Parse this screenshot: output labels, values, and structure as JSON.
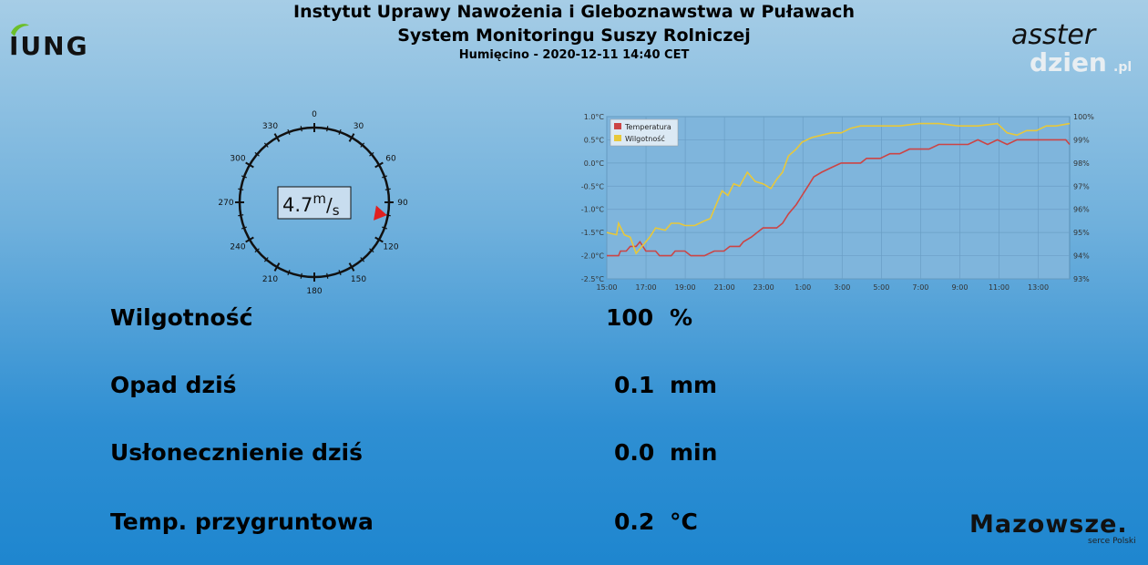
{
  "header": {
    "title": "Instytut Uprawy Nawożenia i Gleboznawstwa w Puławach",
    "subtitle": "System Monitoringu Suszy Rolniczej",
    "station_line": "Humięcino - 2020-12-11 14:40 CET"
  },
  "logos": {
    "left_text": "IUNG",
    "right_text_top": "asster",
    "right_text_bottom": "dzien",
    "right_text_bottom_suffix": ".pl",
    "bottom_text": "Mazowsze.",
    "bottom_subtext": "serce Polski"
  },
  "wind": {
    "speed_value": "4.7",
    "unit_top": "m",
    "unit_bottom": "s",
    "direction_deg": 100,
    "compass_labels": [
      "0",
      "30",
      "60",
      "90",
      "120",
      "150",
      "180",
      "210",
      "240",
      "270",
      "300",
      "330"
    ],
    "indicator_color": "#e02020"
  },
  "chart_data": {
    "type": "line",
    "x_ticks": [
      "15:00",
      "17:00",
      "19:00",
      "21:00",
      "23:00",
      "1:00",
      "3:00",
      "5:00",
      "7:00",
      "9:00",
      "11:00",
      "13:00"
    ],
    "y_left": {
      "ticks": [
        "1.0°C",
        "0.5°C",
        "0.0°C",
        "-0.5°C",
        "-1.0°C",
        "-1.5°C",
        "-2.0°C",
        "-2.5°C"
      ],
      "range": [
        -2.5,
        1.0
      ]
    },
    "y_right": {
      "ticks": [
        "100%",
        "99%",
        "98%",
        "97%",
        "96%",
        "95%",
        "94%",
        "93%"
      ],
      "range": [
        93,
        100
      ]
    },
    "grid": true,
    "legend_position": "top-left",
    "series": [
      {
        "name": "Temperatura",
        "axis": "left",
        "color": "#cc4444",
        "points": [
          [
            0,
            -2.0
          ],
          [
            0.6,
            -2.0
          ],
          [
            0.7,
            -1.9
          ],
          [
            1.0,
            -1.9
          ],
          [
            1.2,
            -1.8
          ],
          [
            1.5,
            -1.8
          ],
          [
            1.7,
            -1.7
          ],
          [
            2.0,
            -1.9
          ],
          [
            2.5,
            -1.9
          ],
          [
            2.7,
            -2.0
          ],
          [
            3.3,
            -2.0
          ],
          [
            3.5,
            -1.9
          ],
          [
            4.0,
            -1.9
          ],
          [
            4.3,
            -2.0
          ],
          [
            4.6,
            -2.0
          ],
          [
            5.0,
            -2.0
          ],
          [
            5.5,
            -1.9
          ],
          [
            6.0,
            -1.9
          ],
          [
            6.3,
            -1.8
          ],
          [
            6.8,
            -1.8
          ],
          [
            7.0,
            -1.7
          ],
          [
            7.4,
            -1.6
          ],
          [
            7.7,
            -1.5
          ],
          [
            8.0,
            -1.4
          ],
          [
            8.7,
            -1.4
          ],
          [
            9.0,
            -1.3
          ],
          [
            9.3,
            -1.1
          ],
          [
            9.7,
            -0.9
          ],
          [
            10.0,
            -0.7
          ],
          [
            10.3,
            -0.5
          ],
          [
            10.6,
            -0.3
          ],
          [
            11.0,
            -0.2
          ],
          [
            11.5,
            -0.1
          ],
          [
            12.0,
            0.0
          ],
          [
            13.0,
            0.0
          ],
          [
            13.3,
            0.1
          ],
          [
            14.0,
            0.1
          ],
          [
            14.5,
            0.2
          ],
          [
            15.0,
            0.2
          ],
          [
            15.5,
            0.3
          ],
          [
            16.5,
            0.3
          ],
          [
            17.0,
            0.4
          ],
          [
            18.5,
            0.4
          ],
          [
            19.0,
            0.5
          ],
          [
            19.5,
            0.4
          ],
          [
            20.0,
            0.5
          ],
          [
            20.5,
            0.4
          ],
          [
            21.0,
            0.5
          ],
          [
            22.0,
            0.5
          ],
          [
            23.5,
            0.5
          ],
          [
            23.7,
            0.4
          ]
        ]
      },
      {
        "name": "Wilgotność",
        "axis": "right",
        "color": "#e8c83a",
        "points": [
          [
            0,
            95.0
          ],
          [
            0.5,
            94.9
          ],
          [
            0.6,
            95.4
          ],
          [
            0.9,
            94.9
          ],
          [
            1.2,
            94.8
          ],
          [
            1.5,
            94.1
          ],
          [
            1.8,
            94.4
          ],
          [
            2.2,
            94.8
          ],
          [
            2.5,
            95.2
          ],
          [
            3.0,
            95.1
          ],
          [
            3.3,
            95.4
          ],
          [
            3.7,
            95.4
          ],
          [
            4.0,
            95.3
          ],
          [
            4.5,
            95.3
          ],
          [
            5.0,
            95.5
          ],
          [
            5.3,
            95.6
          ],
          [
            5.6,
            96.2
          ],
          [
            5.9,
            96.8
          ],
          [
            6.2,
            96.6
          ],
          [
            6.5,
            97.1
          ],
          [
            6.8,
            97.0
          ],
          [
            7.2,
            97.6
          ],
          [
            7.6,
            97.2
          ],
          [
            8.0,
            97.1
          ],
          [
            8.4,
            96.9
          ],
          [
            8.7,
            97.3
          ],
          [
            9.0,
            97.6
          ],
          [
            9.3,
            98.3
          ],
          [
            9.7,
            98.6
          ],
          [
            10.0,
            98.9
          ],
          [
            10.5,
            99.1
          ],
          [
            11.0,
            99.2
          ],
          [
            11.5,
            99.3
          ],
          [
            12.0,
            99.3
          ],
          [
            12.5,
            99.5
          ],
          [
            13.0,
            99.6
          ],
          [
            14.0,
            99.6
          ],
          [
            15.0,
            99.6
          ],
          [
            16.0,
            99.7
          ],
          [
            17.0,
            99.7
          ],
          [
            18.0,
            99.6
          ],
          [
            19.0,
            99.6
          ],
          [
            20.0,
            99.7
          ],
          [
            20.5,
            99.3
          ],
          [
            21.0,
            99.2
          ],
          [
            21.5,
            99.4
          ],
          [
            22.0,
            99.4
          ],
          [
            22.5,
            99.6
          ],
          [
            23.0,
            99.6
          ],
          [
            23.7,
            99.7
          ]
        ]
      }
    ]
  },
  "readings": [
    {
      "label": "Wilgotność",
      "value": "100",
      "unit": "%"
    },
    {
      "label": "Opad dziś",
      "value": "0.1",
      "unit": "mm"
    },
    {
      "label": "Usłonecznienie dziś",
      "value": "0.0",
      "unit": "min"
    },
    {
      "label": "Temp. przygruntowa",
      "value": "0.2",
      "unit": "°C"
    }
  ]
}
